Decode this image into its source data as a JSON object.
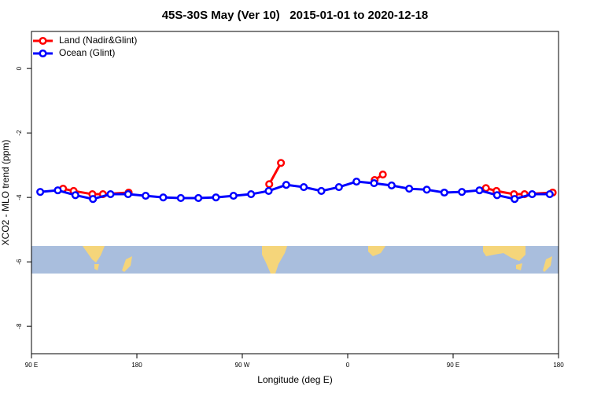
{
  "chart_data": {
    "type": "line",
    "title": "45S-30S May (Ver 10)   2015-01-01 to 2020-12-18",
    "xlabel": "Longitude (deg E)",
    "ylabel": "XCO2 - MLO trend (ppm)",
    "xlim": [
      90,
      540
    ],
    "ylim": [
      -8.85,
      1.15
    ],
    "xticks": [
      {
        "value": 90,
        "label": "90 E"
      },
      {
        "value": 180,
        "label": "180"
      },
      {
        "value": 270,
        "label": "90 W"
      },
      {
        "value": 360,
        "label": "0"
      },
      {
        "value": 450,
        "label": "90 E"
      },
      {
        "value": 540,
        "label": "180"
      }
    ],
    "yticks": [
      0,
      -2,
      -4,
      -6,
      -8
    ],
    "legend": "top-left",
    "series": [
      {
        "name": "Land (Nadir&Glint)",
        "color": "#ff0000",
        "x": [
          117,
          126,
          142,
          151,
          173,
          240,
          293,
          303,
          340,
          383,
          390,
          430,
          478,
          487,
          502,
          511,
          535
        ],
        "values": [
          -3.73,
          -3.8,
          -3.9,
          -3.9,
          -3.85,
          null,
          -3.59,
          -2.93,
          null,
          -3.46,
          -3.29,
          null,
          -3.71,
          -3.8,
          -3.9,
          -3.9,
          -3.85
        ]
      },
      {
        "name": "Ocean (Glint)",
        "color": "#0000ff",
        "x": [
          97.5,
          112.5,
          127.5,
          142.5,
          157.5,
          172.5,
          187.5,
          202.5,
          217.5,
          232.5,
          247.5,
          262.5,
          277.5,
          292.5,
          307.5,
          322.5,
          337.5,
          352.5,
          367.5,
          382.5,
          397.5,
          412.5,
          427.5,
          442.5,
          457.5,
          472.5,
          487.5,
          502.5,
          517.5,
          532.5
        ],
        "values": [
          -3.83,
          -3.78,
          -3.93,
          -4.05,
          -3.9,
          -3.9,
          -3.95,
          -4.0,
          -4.02,
          -4.02,
          -4.0,
          -3.95,
          -3.9,
          -3.8,
          -3.61,
          -3.68,
          -3.8,
          -3.68,
          -3.51,
          -3.56,
          -3.63,
          -3.73,
          -3.76,
          -3.85,
          -3.83,
          -3.78,
          -3.93,
          -4.05,
          -3.9,
          -3.9
        ]
      }
    ]
  }
}
